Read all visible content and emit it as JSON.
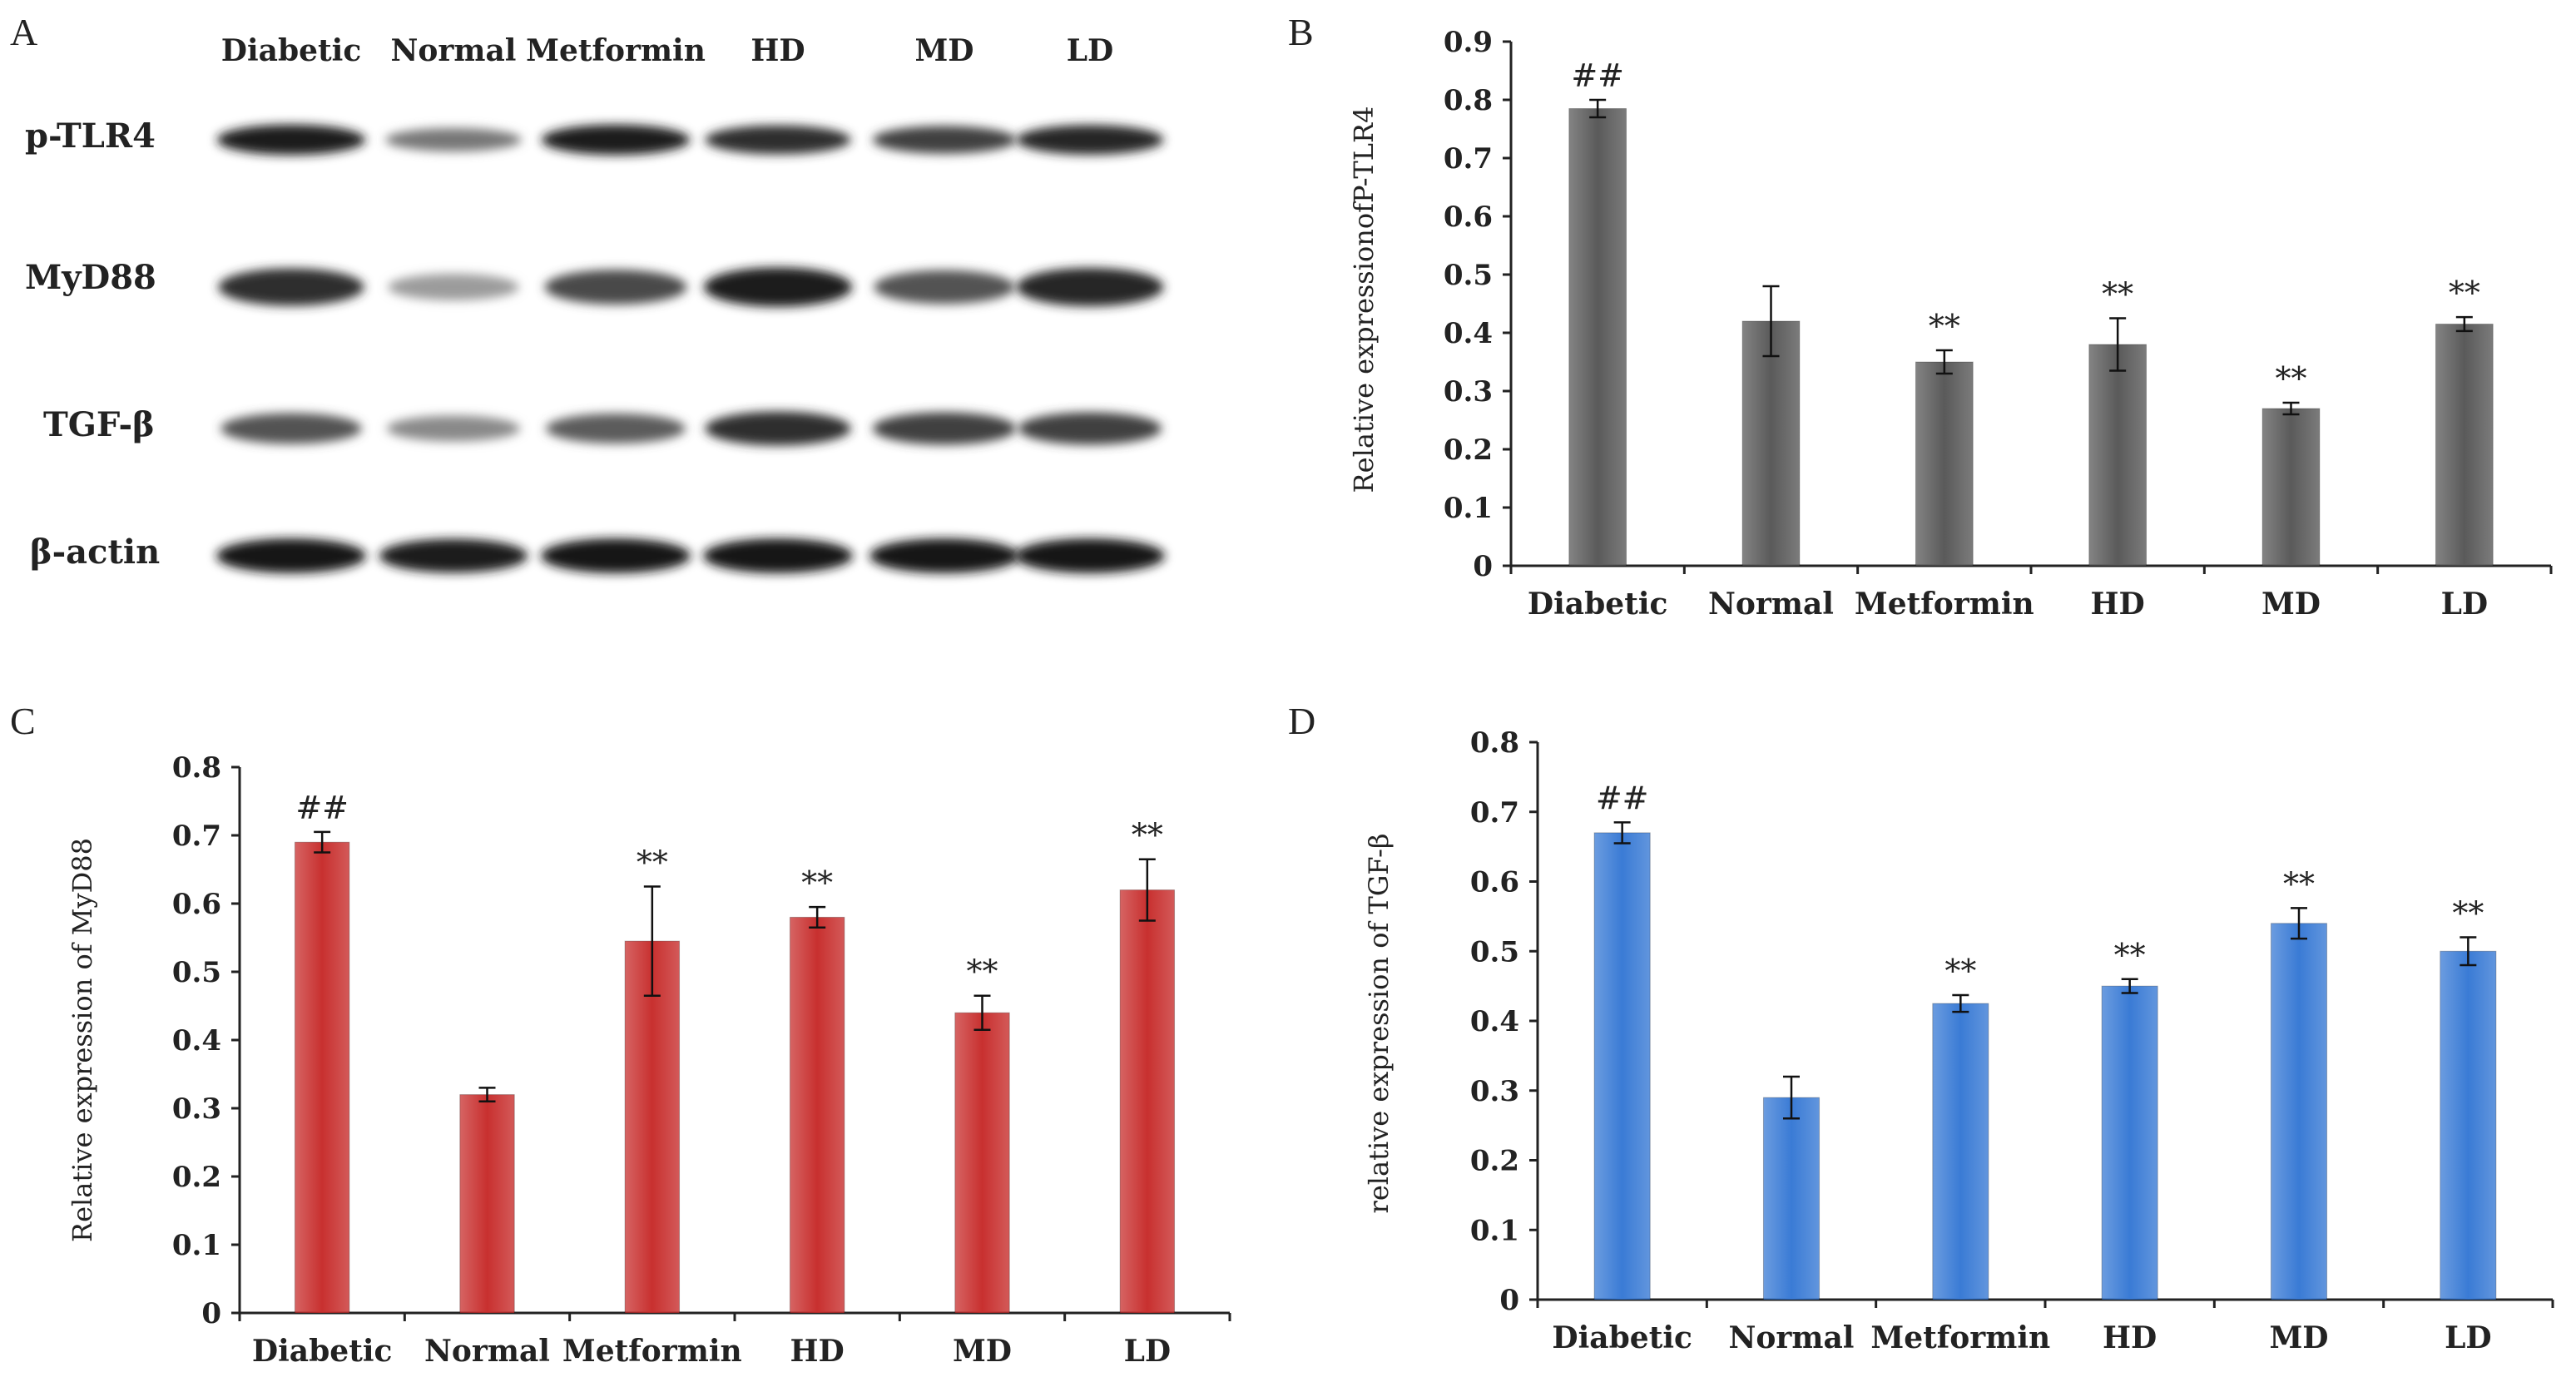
{
  "panels": {
    "a": "A",
    "b": "B",
    "c": "C",
    "d": "D"
  },
  "blot": {
    "lanes": [
      "Diabetic",
      "Normal",
      "Metformin",
      "HD",
      "MD",
      "LD"
    ],
    "rows": [
      {
        "label": "p-TLR4",
        "intensity": [
          0.95,
          0.45,
          0.95,
          0.85,
          0.75,
          0.9
        ]
      },
      {
        "label": "MyD88",
        "intensity": [
          0.85,
          0.25,
          0.7,
          0.95,
          0.65,
          0.9
        ]
      },
      {
        "label": "TGF-β",
        "intensity": [
          0.65,
          0.35,
          0.6,
          0.85,
          0.75,
          0.75
        ]
      },
      {
        "label": "β-actin",
        "intensity": [
          1.0,
          0.95,
          1.0,
          1.0,
          1.0,
          1.0
        ]
      }
    ]
  },
  "chart_data": [
    {
      "panel": "B",
      "type": "bar",
      "categories": [
        "Diabetic",
        "Normal",
        "Metformin",
        "HD",
        "MD",
        "LD"
      ],
      "values": [
        0.785,
        0.42,
        0.35,
        0.38,
        0.27,
        0.415
      ],
      "errors": [
        0.015,
        0.06,
        0.02,
        0.045,
        0.01,
        0.012
      ],
      "annotations": [
        "##",
        "",
        "**",
        "**",
        "**",
        "**"
      ],
      "ylabel": "Relative expressionofP-TLR4",
      "ylim": [
        0,
        0.9
      ],
      "yticks": [
        "0",
        "0.1",
        "0.2",
        "0.3",
        "0.4",
        "0.5",
        "0.6",
        "0.7",
        "0.8",
        "0.9"
      ],
      "color": "#5a5a5a"
    },
    {
      "panel": "C",
      "type": "bar",
      "categories": [
        "Diabetic",
        "Normal",
        "Metformin",
        "HD",
        "MD",
        "LD"
      ],
      "values": [
        0.69,
        0.32,
        0.545,
        0.58,
        0.44,
        0.62
      ],
      "errors": [
        0.015,
        0.01,
        0.08,
        0.015,
        0.025,
        0.045
      ],
      "annotations": [
        "##",
        "",
        "**",
        "**",
        "**",
        "**"
      ],
      "ylabel": "Relative expression of  MyD88",
      "ylim": [
        0,
        0.8
      ],
      "yticks": [
        "0",
        "0.1",
        "0.2",
        "0.3",
        "0.4",
        "0.5",
        "0.6",
        "0.7",
        "0.8"
      ],
      "color": "#c8302f"
    },
    {
      "panel": "D",
      "type": "bar",
      "categories": [
        "Diabetic",
        "Normal",
        "Metformin",
        "HD",
        "MD",
        "LD"
      ],
      "values": [
        0.67,
        0.29,
        0.425,
        0.45,
        0.54,
        0.5
      ],
      "errors": [
        0.015,
        0.03,
        0.012,
        0.01,
        0.022,
        0.02
      ],
      "annotations": [
        "##",
        "",
        "**",
        "**",
        "**",
        "**"
      ],
      "ylabel": "relative expression of TGF-β",
      "ylim": [
        0,
        0.8
      ],
      "yticks": [
        "0",
        "0.1",
        "0.2",
        "0.3",
        "0.4",
        "0.5",
        "0.6",
        "0.7",
        "0.8"
      ],
      "color": "#3a7bd5"
    }
  ]
}
